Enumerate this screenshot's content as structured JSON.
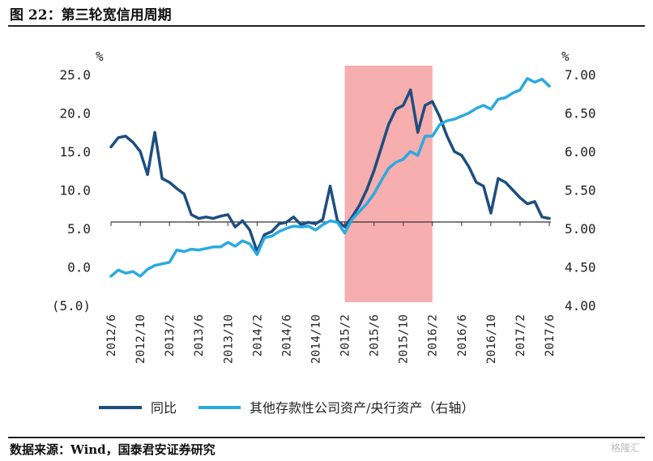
{
  "header": {
    "title": "图 22：第三轮宽信用周期"
  },
  "footer": {
    "source": "数据来源：Wind，国泰君安证券研究",
    "watermark": "格隆汇"
  },
  "colors": {
    "series1": "#1d4e7f",
    "series2": "#29aae1",
    "highlight": "#f4a0a0",
    "negative_tick": "#c00000"
  },
  "chart_data": {
    "type": "line",
    "title": "",
    "left_axis": {
      "unit": "%",
      "ylim": [
        -5,
        25
      ],
      "ticks": [
        -5,
        0,
        5,
        10,
        15,
        20,
        25
      ],
      "tick_labels": [
        "(5.0)",
        "0.0",
        "5.0",
        "10.0",
        "15.0",
        "20.0",
        "25.0"
      ]
    },
    "right_axis": {
      "unit": "%",
      "ylim": [
        4.0,
        7.0
      ],
      "ticks": [
        4.0,
        4.5,
        5.0,
        5.5,
        6.0,
        6.5,
        7.0
      ],
      "tick_labels": [
        "4.00",
        "4.50",
        "5.00",
        "5.50",
        "6.00",
        "6.50",
        "7.00"
      ]
    },
    "x_range": [
      "2012-06",
      "2017-06"
    ],
    "x_tick_labels": [
      "2012/6",
      "2012/10",
      "2013/2",
      "2013/6",
      "2013/10",
      "2014/2",
      "2014/6",
      "2014/10",
      "2015/2",
      "2015/6",
      "2015/10",
      "2016/2",
      "2016/6",
      "2016/10",
      "2017/2",
      "2017/6"
    ],
    "x_tick_dates": [
      "2012-06",
      "2012-10",
      "2013-02",
      "2013-06",
      "2013-10",
      "2014-02",
      "2014-06",
      "2014-10",
      "2015-02",
      "2015-06",
      "2015-10",
      "2016-02",
      "2016-06",
      "2016-10",
      "2017-02",
      "2017-06"
    ],
    "highlight_period": [
      "2015-02",
      "2016-02"
    ],
    "series": [
      {
        "name": "同比",
        "axis": "left",
        "x": [
          "2012-06",
          "2012-07",
          "2012-08",
          "2012-09",
          "2012-10",
          "2012-11",
          "2012-12",
          "2013-01",
          "2013-02",
          "2013-03",
          "2013-04",
          "2013-05",
          "2013-06",
          "2013-07",
          "2013-08",
          "2013-09",
          "2013-10",
          "2013-11",
          "2013-12",
          "2014-01",
          "2014-02",
          "2014-03",
          "2014-04",
          "2014-05",
          "2014-06",
          "2014-07",
          "2014-08",
          "2014-09",
          "2014-10",
          "2014-11",
          "2014-12",
          "2015-01",
          "2015-02",
          "2015-03",
          "2015-04",
          "2015-05",
          "2015-06",
          "2015-07",
          "2015-08",
          "2015-09",
          "2015-10",
          "2015-11",
          "2015-12",
          "2016-01",
          "2016-02",
          "2016-03",
          "2016-04",
          "2016-05",
          "2016-06",
          "2016-07",
          "2016-08",
          "2016-09",
          "2016-10",
          "2016-11",
          "2016-12",
          "2017-01",
          "2017-02",
          "2017-03",
          "2017-04",
          "2017-05",
          "2017-06"
        ],
        "values": [
          15.6,
          16.8,
          17.0,
          16.2,
          15.0,
          12.0,
          17.5,
          11.5,
          11.0,
          10.2,
          9.5,
          6.8,
          6.3,
          6.5,
          6.3,
          6.6,
          6.8,
          5.2,
          6.0,
          4.8,
          2.0,
          4.2,
          4.6,
          5.6,
          5.8,
          6.5,
          5.5,
          5.8,
          5.6,
          6.2,
          10.5,
          6.0,
          5.2,
          6.5,
          8.0,
          10.0,
          12.5,
          15.5,
          18.5,
          20.5,
          21.0,
          23.0,
          17.5,
          21.0,
          21.5,
          19.5,
          17.0,
          15.0,
          14.5,
          13.0,
          11.0,
          10.5,
          7.0,
          11.5,
          11.0,
          10.0,
          9.0,
          8.2,
          8.5,
          6.5,
          6.3
        ]
      },
      {
        "name": "其他存款性公司资产/央行资产（右轴）",
        "axis": "right",
        "x": [
          "2012-06",
          "2012-07",
          "2012-08",
          "2012-09",
          "2012-10",
          "2012-11",
          "2012-12",
          "2013-01",
          "2013-02",
          "2013-03",
          "2013-04",
          "2013-05",
          "2013-06",
          "2013-07",
          "2013-08",
          "2013-09",
          "2013-10",
          "2013-11",
          "2013-12",
          "2014-01",
          "2014-02",
          "2014-03",
          "2014-04",
          "2014-05",
          "2014-06",
          "2014-07",
          "2014-08",
          "2014-09",
          "2014-10",
          "2014-11",
          "2014-12",
          "2015-01",
          "2015-02",
          "2015-03",
          "2015-04",
          "2015-05",
          "2015-06",
          "2015-07",
          "2015-08",
          "2015-09",
          "2015-10",
          "2015-11",
          "2015-12",
          "2016-01",
          "2016-02",
          "2016-03",
          "2016-04",
          "2016-05",
          "2016-06",
          "2016-07",
          "2016-08",
          "2016-09",
          "2016-10",
          "2016-11",
          "2016-12",
          "2017-01",
          "2017-02",
          "2017-03",
          "2017-04",
          "2017-05",
          "2017-06"
        ],
        "values": [
          4.38,
          4.46,
          4.42,
          4.44,
          4.38,
          4.47,
          4.52,
          4.54,
          4.56,
          4.72,
          4.7,
          4.73,
          4.72,
          4.74,
          4.76,
          4.76,
          4.82,
          4.77,
          4.84,
          4.8,
          4.66,
          4.88,
          4.9,
          4.96,
          5.0,
          5.03,
          5.02,
          5.03,
          4.98,
          5.05,
          5.1,
          5.08,
          4.94,
          5.12,
          5.22,
          5.32,
          5.45,
          5.62,
          5.78,
          5.86,
          5.9,
          6.0,
          5.95,
          6.2,
          6.2,
          6.35,
          6.4,
          6.42,
          6.46,
          6.5,
          6.56,
          6.6,
          6.55,
          6.68,
          6.7,
          6.76,
          6.8,
          6.95,
          6.9,
          6.94,
          6.85
        ]
      }
    ],
    "legend": {
      "placement": "bottom",
      "entries": [
        "同比",
        "其他存款性公司资产/央行资产（右轴）"
      ]
    }
  }
}
